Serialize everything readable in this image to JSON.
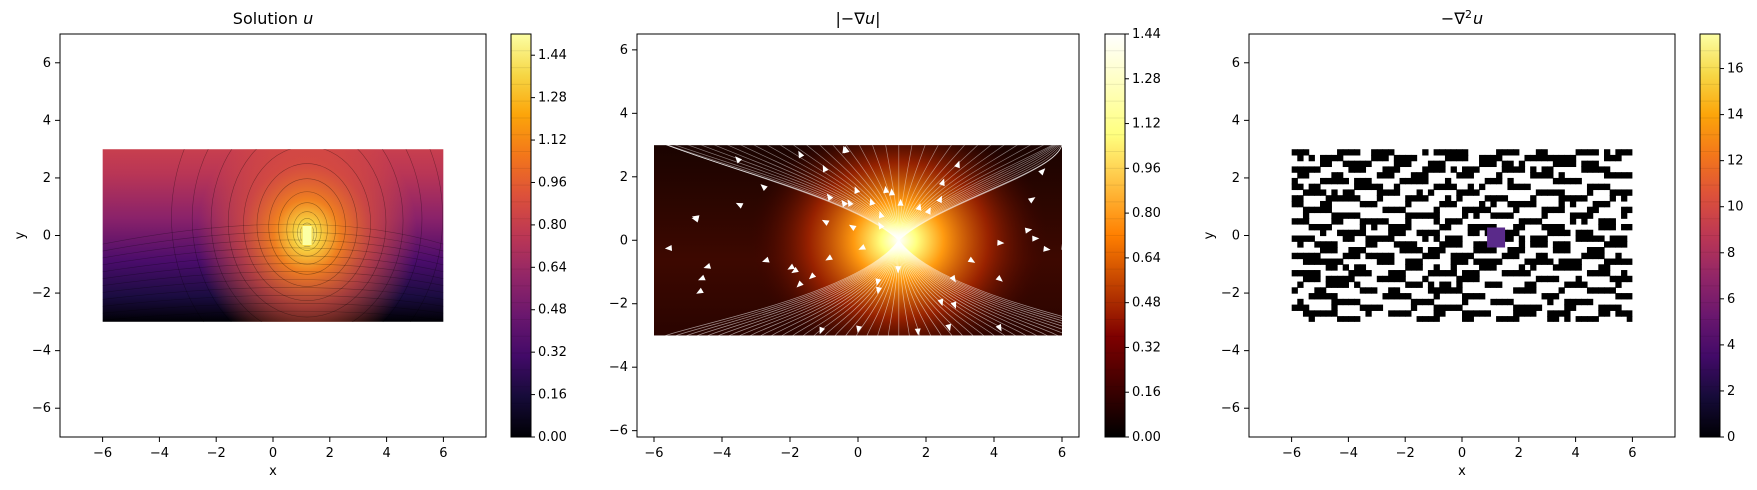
{
  "chart_data": [
    {
      "type": "heatmap",
      "title": "Solution u",
      "title_parts": [
        "Solution ",
        "u"
      ],
      "xlabel": "x",
      "ylabel": "y",
      "xlim": [
        -7.5,
        7.5
      ],
      "ylim": [
        -7,
        7
      ],
      "xticks": [
        -6,
        -4,
        -2,
        0,
        2,
        4,
        6
      ],
      "yticks": [
        -6,
        -4,
        -2,
        0,
        2,
        4,
        6
      ],
      "domain": {
        "x": [
          -6,
          6
        ],
        "y": [
          -3,
          3
        ]
      },
      "source_point": [
        1.2,
        0
      ],
      "colormap": "inferno",
      "colorbar": {
        "min": 0,
        "max": 1.52,
        "ticks": [
          "0.00",
          "0.16",
          "0.32",
          "0.48",
          "0.64",
          "0.80",
          "0.96",
          "1.12",
          "1.28",
          "1.44"
        ]
      }
    },
    {
      "type": "heatmap",
      "title": "|−∇u|",
      "title_parts": [
        "|−∇",
        "u",
        "|"
      ],
      "xlabel": "",
      "ylabel": "",
      "xlim": [
        -6.5,
        6.5
      ],
      "ylim": [
        -6.2,
        6.5
      ],
      "xticks": [
        -6,
        -4,
        -2,
        0,
        2,
        4,
        6
      ],
      "yticks": [
        -6,
        -4,
        -2,
        0,
        2,
        4,
        6
      ],
      "domain": {
        "x": [
          -6,
          6
        ],
        "y": [
          -3,
          3
        ]
      },
      "source_point": [
        1.2,
        0
      ],
      "colormap": "afmhot",
      "overlay": "white streamlines with arrows",
      "colorbar": {
        "min": 0,
        "max": 1.44,
        "ticks": [
          "0.00",
          "0.16",
          "0.32",
          "0.48",
          "0.64",
          "0.80",
          "0.96",
          "1.12",
          "1.28",
          "1.44"
        ]
      }
    },
    {
      "type": "heatmap",
      "title": "−∇²u",
      "title_parts": [
        "−∇",
        "2",
        "u"
      ],
      "xlabel": "x",
      "ylabel": "y",
      "xlim": [
        -7.5,
        7.5
      ],
      "ylim": [
        -7,
        7
      ],
      "xticks": [
        -6,
        -4,
        -2,
        0,
        2,
        4,
        6
      ],
      "yticks": [
        -6,
        -4,
        -2,
        0,
        2,
        4,
        6
      ],
      "domain": {
        "x": [
          -6,
          6
        ],
        "y": [
          -3,
          3
        ]
      },
      "source_point": [
        1.2,
        0
      ],
      "colormap": "inferno",
      "pattern": "noisy black/white speckle",
      "colorbar": {
        "min": 0,
        "max": 17.5,
        "ticks": [
          "0",
          "2",
          "4",
          "6",
          "8",
          "10",
          "12",
          "14",
          "16"
        ]
      }
    }
  ],
  "colors": {
    "axis": "#000000",
    "background": "#ffffff",
    "streamline": "#ffffff"
  }
}
